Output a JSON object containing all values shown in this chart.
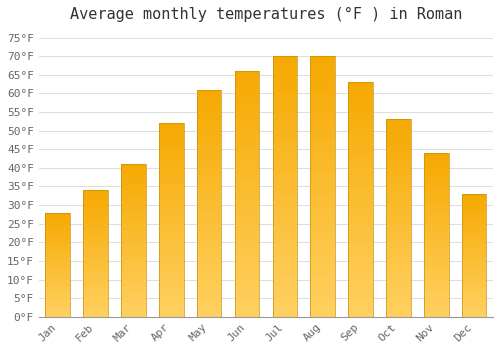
{
  "title": "Average monthly temperatures (°F ) in Roman",
  "months": [
    "Jan",
    "Feb",
    "Mar",
    "Apr",
    "May",
    "Jun",
    "Jul",
    "Aug",
    "Sep",
    "Oct",
    "Nov",
    "Dec"
  ],
  "values": [
    28,
    34,
    41,
    52,
    61,
    66,
    70,
    70,
    63,
    53,
    44,
    33
  ],
  "bar_color_top": "#F5A800",
  "bar_color_bottom": "#FFD060",
  "bar_edge_color": "#C8900A",
  "background_color": "#FFFFFF",
  "plot_bg_color": "#FFFFFF",
  "grid_color": "#DDDDDD",
  "ylim": [
    0,
    77
  ],
  "yticks": [
    0,
    5,
    10,
    15,
    20,
    25,
    30,
    35,
    40,
    45,
    50,
    55,
    60,
    65,
    70,
    75
  ],
  "title_fontsize": 11,
  "tick_fontsize": 8,
  "font_family": "monospace"
}
